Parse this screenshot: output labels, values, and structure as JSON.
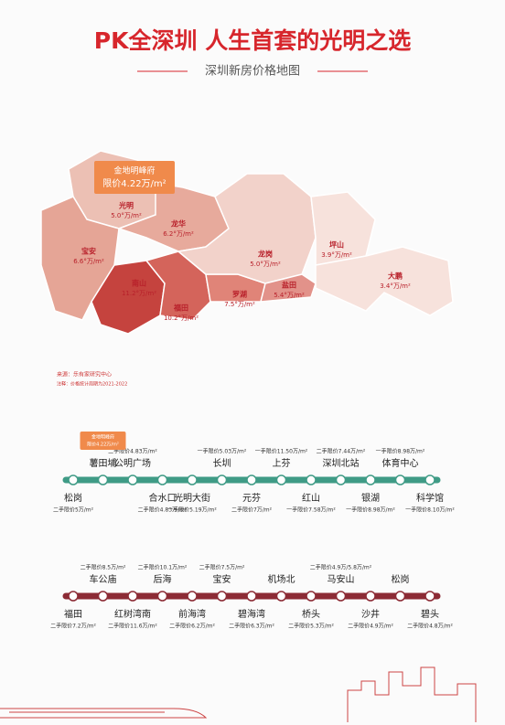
{
  "header": {
    "title": "PK全深圳 人生首套的光明之选",
    "subtitle": "深圳新房价格地图"
  },
  "map": {
    "callout": {
      "name": "金地明峰府",
      "price": "限价4.22万/m²"
    },
    "districts": [
      {
        "name": "光明",
        "price": "5.0°万/m²"
      },
      {
        "name": "龙华",
        "price": "6.2°万/m²"
      },
      {
        "name": "宝安",
        "price": "6.6°万/m²"
      },
      {
        "name": "南山",
        "price": "11.2°万/m²"
      },
      {
        "name": "福田",
        "price": "10.2°万/m²"
      },
      {
        "name": "罗湖",
        "price": "7.5°万/m²"
      },
      {
        "name": "龙岗",
        "price": "5.0°万/m²"
      },
      {
        "name": "盐田",
        "price": "5.4°万/m²"
      },
      {
        "name": "坪山",
        "price": "3.9°万/m²"
      },
      {
        "name": "大鹏",
        "price": "3.4°万/m²"
      }
    ],
    "source": "来源：乐有家研究中心",
    "note": "注释：价格统计周期为2021-2022"
  },
  "metro": [
    {
      "callout": {
        "name": "金地明峰府",
        "price": "限价4.22万/m²"
      },
      "stations": [
        {
          "name": "松岗",
          "price": "二手限价5万/m²"
        },
        {
          "name": "薯田埔"
        },
        {
          "name": "公明广场",
          "price": "二手限价4.83万/m²"
        },
        {
          "name": "合水口",
          "price": "二手限价4.83万/m²"
        },
        {
          "name": "光明大街",
          "price": "一手限价5.19万/m²"
        },
        {
          "name": "长圳",
          "price": "一手限价5.03万/m²"
        },
        {
          "name": "元芬",
          "price": "二手限价7万/m²"
        },
        {
          "name": "上芬",
          "price": "一手限价11.50万/m²"
        },
        {
          "name": "红山",
          "price": "一手限价7.58万/m²"
        },
        {
          "name": "深圳北站",
          "price": "二手限价7.44万/m²"
        },
        {
          "name": "银湖",
          "price": "一手限价8.98万/m²"
        },
        {
          "name": "体育中心",
          "price": "一手限价8.98万/m²"
        },
        {
          "name": "科学馆",
          "price": "一手限价8.10万/m²"
        }
      ]
    },
    {
      "stations": [
        {
          "name": "福田",
          "price": "二手限价7.2万/m²"
        },
        {
          "name": "车公庙",
          "price": "二手限价8.5万/m²"
        },
        {
          "name": "红树湾南",
          "price": "二手限价11.6万/m²"
        },
        {
          "name": "后海",
          "price": "二手限价10.1万/m²"
        },
        {
          "name": "前海湾",
          "price": "二手限价6.2万/m²"
        },
        {
          "name": "宝安",
          "price": "二手限价7.5万/m²"
        },
        {
          "name": "碧海湾",
          "price": "二手限价6.3万/m²"
        },
        {
          "name": "机场北"
        },
        {
          "name": "桥头",
          "price": "二手限价5.3万/m²"
        },
        {
          "name": "马安山",
          "price": "二手限价4.9万/5.8万/m²"
        },
        {
          "name": "沙井",
          "price": "二手限价4.9万/m²"
        },
        {
          "name": "松岗"
        },
        {
          "name": "碧头",
          "price": "二手限价4.8万/m²"
        }
      ]
    }
  ]
}
